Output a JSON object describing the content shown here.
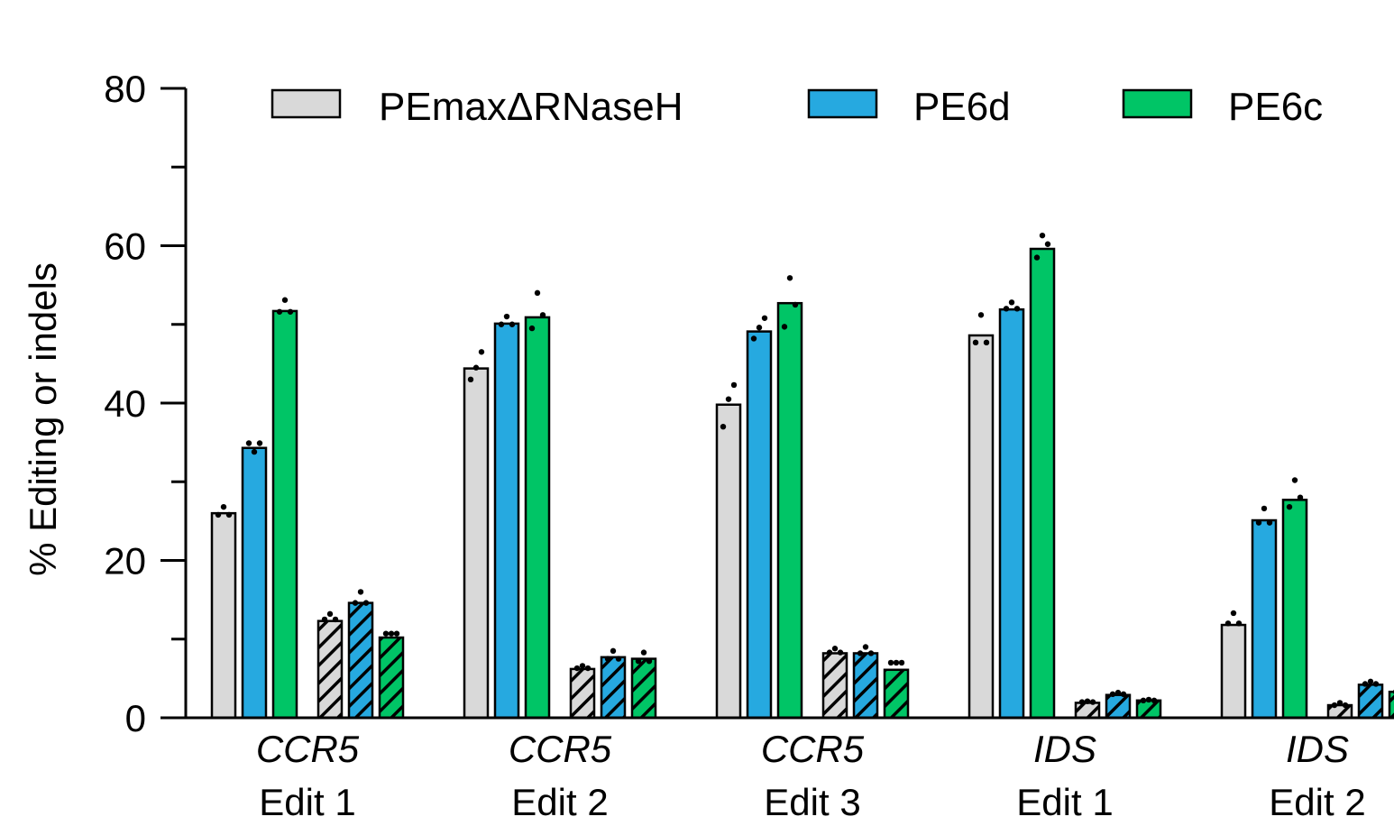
{
  "chart_data": {
    "type": "bar",
    "title": "",
    "xlabel": "",
    "ylabel": "% Editing or indels",
    "ylim": [
      0,
      80
    ],
    "yticks": [
      0,
      20,
      40,
      60,
      80
    ],
    "legend_position": "top",
    "series": [
      {
        "name": "PEmaxΔRNaseH",
        "color": "#d9d9d9",
        "hatched": false
      },
      {
        "name": "PE6d",
        "color": "#26a9e0",
        "hatched": false
      },
      {
        "name": "PE6c",
        "color": "#00c566",
        "hatched": false
      }
    ],
    "categories": [
      {
        "gene": "CCR5",
        "edit": "Edit 1"
      },
      {
        "gene": "CCR5",
        "edit": "Edit 2"
      },
      {
        "gene": "CCR5",
        "edit": "Edit 3"
      },
      {
        "gene": "IDS",
        "edit": "Edit 1"
      },
      {
        "gene": "IDS",
        "edit": "Edit 2"
      }
    ],
    "groups": [
      {
        "editing": [
          26,
          34.3,
          51.7
        ],
        "indels": [
          12.3,
          14.6,
          10.2
        ],
        "editing_points": [
          [
            25.8,
            26.8,
            25.8
          ],
          [
            34.9,
            33.8,
            34.9
          ],
          [
            51.6,
            53.1,
            51.6
          ]
        ],
        "indels_points": [
          [
            12.5,
            13.2,
            12.5
          ],
          [
            14.6,
            16.0,
            14.6
          ],
          [
            10.7,
            10.7,
            10.7
          ]
        ]
      },
      {
        "editing": [
          44.4,
          50.1,
          50.9
        ],
        "indels": [
          6.2,
          7.7,
          7.5
        ],
        "editing_points": [
          [
            43.0,
            44.5,
            46.5
          ],
          [
            50.0,
            51.0,
            50.0
          ],
          [
            49.5,
            54.0,
            51.2
          ]
        ],
        "indels_points": [
          [
            6.3,
            6.6,
            6.3
          ],
          [
            7.5,
            8.5,
            7.5
          ],
          [
            7.2,
            8.3,
            7.2
          ]
        ]
      },
      {
        "editing": [
          39.8,
          49.1,
          52.7
        ],
        "indels": [
          8.2,
          8.2,
          6.1
        ],
        "editing_points": [
          [
            37.0,
            40.5,
            42.3
          ],
          [
            48.2,
            49.6,
            50.8
          ],
          [
            49.7,
            55.9,
            52.5
          ]
        ],
        "indels_points": [
          [
            8.3,
            8.8,
            8.3
          ],
          [
            8.2,
            9.0,
            8.2
          ],
          [
            7.0,
            7.0,
            7.0
          ]
        ]
      },
      {
        "editing": [
          48.6,
          51.9,
          59.6
        ],
        "indels": [
          1.9,
          2.9,
          2.2
        ],
        "editing_points": [
          [
            47.7,
            51.2,
            47.7
          ],
          [
            52.0,
            52.8,
            52.0
          ],
          [
            58.5,
            61.3,
            60.2
          ]
        ],
        "indels_points": [
          [
            2.0,
            2.1,
            2.0
          ],
          [
            3.0,
            3.2,
            3.0
          ],
          [
            2.2,
            2.3,
            2.2
          ]
        ]
      },
      {
        "editing": [
          11.8,
          25.1,
          27.7
        ],
        "indels": [
          1.6,
          4.2,
          3.3
        ],
        "editing_points": [
          [
            12.0,
            13.3,
            12.0
          ],
          [
            24.8,
            26.6,
            24.8
          ],
          [
            26.8,
            30.2,
            28.0
          ]
        ],
        "indels_points": [
          [
            1.6,
            1.9,
            1.6
          ],
          [
            4.3,
            4.6,
            4.3
          ],
          [
            3.3,
            3.3,
            3.3
          ]
        ]
      }
    ]
  }
}
